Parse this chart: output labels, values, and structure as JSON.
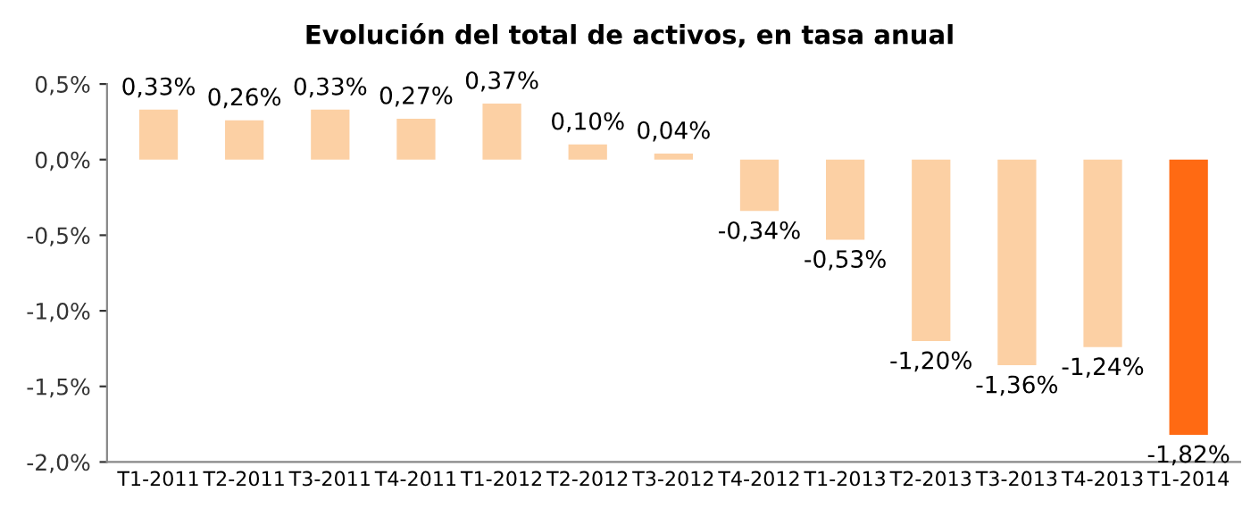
{
  "chart_data": {
    "type": "bar",
    "title": "Evolución del total de activos, en tasa anual",
    "categories": [
      "T1-2011",
      "T2-2011",
      "T3-2011",
      "T4-2011",
      "T1-2012",
      "T2-2012",
      "T3-2012",
      "T4-2012",
      "T1-2013",
      "T2-2013",
      "T3-2013",
      "T4-2013",
      "T1-2014"
    ],
    "values": [
      0.33,
      0.26,
      0.33,
      0.27,
      0.37,
      0.1,
      0.04,
      -0.34,
      -0.53,
      -1.2,
      -1.36,
      -1.24,
      -1.82
    ],
    "value_labels": [
      "0,33%",
      "0,26%",
      "0,33%",
      "0,27%",
      "0,37%",
      "0,10%",
      "0,04%",
      "-0,34%",
      "-0,53%",
      "-1,20%",
      "-1,36%",
      "-1,24%",
      "-1,82%"
    ],
    "colors": [
      "#fcd0a4",
      "#fcd0a4",
      "#fcd0a4",
      "#fcd0a4",
      "#fcd0a4",
      "#fcd0a4",
      "#fcd0a4",
      "#fcd0a4",
      "#fcd0a4",
      "#fcd0a4",
      "#fcd0a4",
      "#fcd0a4",
      "#ff6a13"
    ],
    "ylim": [
      -2.0,
      0.5
    ],
    "yticks": [
      {
        "value": 0.5,
        "label": "0,5%"
      },
      {
        "value": 0.0,
        "label": "0,0%"
      },
      {
        "value": -0.5,
        "label": "-0,5%"
      },
      {
        "value": -1.0,
        "label": "-1,0%"
      },
      {
        "value": -1.5,
        "label": "-1,5%"
      },
      {
        "value": -2.0,
        "label": "-2,0%"
      }
    ],
    "grid": false,
    "legend": false
  }
}
